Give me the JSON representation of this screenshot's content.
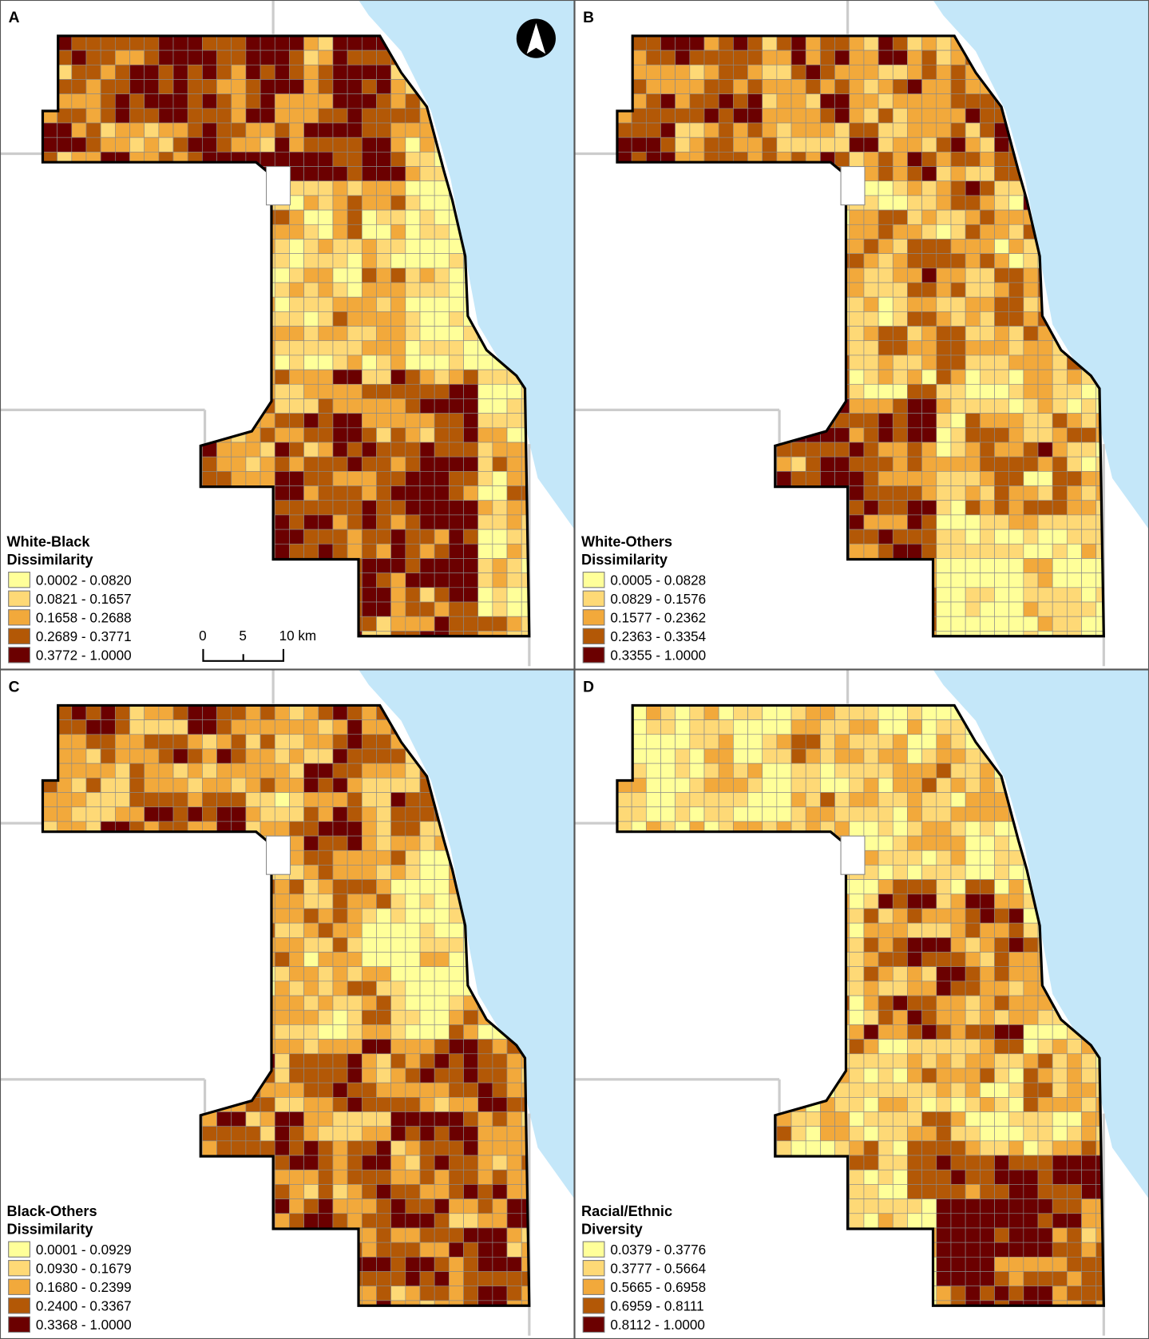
{
  "colors": [
    "#ffff99",
    "#fed976",
    "#f2a93b",
    "#b35806",
    "#6b0000"
  ],
  "panels": [
    {
      "label": "A",
      "legend_title": [
        "White-Black",
        "Dissimilarity"
      ],
      "classes": [
        "0.0002 - 0.0820",
        "0.0821 - 0.1657",
        "0.1658 - 0.2688",
        "0.2689 - 0.3771",
        "0.3772 - 1.0000"
      ]
    },
    {
      "label": "B",
      "legend_title": [
        "White-Others",
        "Dissimilarity"
      ],
      "classes": [
        "0.0005 - 0.0828",
        "0.0829 - 0.1576",
        "0.1577 - 0.2362",
        "0.2363 - 0.3354",
        "0.3355 - 1.0000"
      ]
    },
    {
      "label": "C",
      "legend_title": [
        "Black-Others",
        "Dissimilarity"
      ],
      "classes": [
        "0.0001 - 0.0929",
        "0.0930 - 0.1679",
        "0.1680 - 0.2399",
        "0.2400 - 0.3367",
        "0.3368 - 1.0000"
      ]
    },
    {
      "label": "D",
      "legend_title": [
        "Racial/Ethnic",
        "Diversity"
      ],
      "classes": [
        "0.0379 - 0.3776",
        "0.3777 - 0.5664",
        "0.5665 - 0.6958",
        "0.6959 - 0.8111",
        "0.8112 - 1.0000"
      ]
    }
  ],
  "scale_bar": {
    "labels": [
      "0",
      "5",
      "10 km"
    ]
  }
}
